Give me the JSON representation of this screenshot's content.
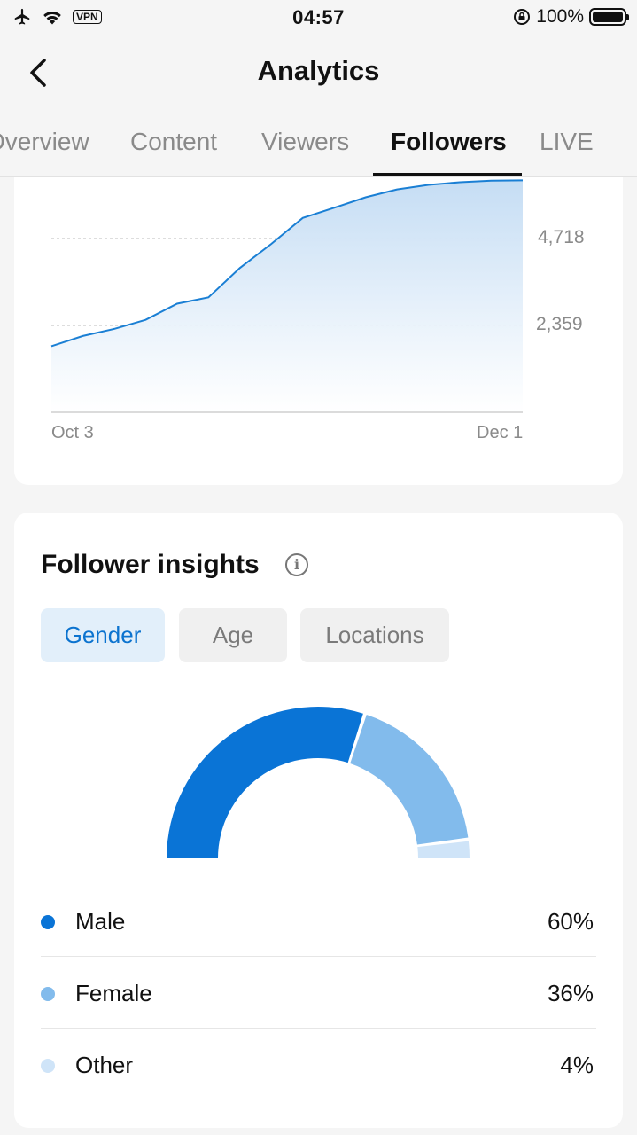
{
  "status_bar": {
    "time": "04:57",
    "vpn": "VPN",
    "battery": "100%"
  },
  "header": {
    "title": "Analytics"
  },
  "tabs": [
    {
      "label": "Overview",
      "active": false
    },
    {
      "label": "Content",
      "active": false
    },
    {
      "label": "Viewers",
      "active": false
    },
    {
      "label": "Followers",
      "active": true
    },
    {
      "label": "LIVE",
      "active": false
    }
  ],
  "chart_data": {
    "type": "area",
    "y_ticks": [
      "4,718",
      "2,359"
    ],
    "x_ticks": [
      "Oct 3",
      "Dec 1"
    ],
    "x": [
      "Oct 3",
      "Oct 7",
      "Oct 11",
      "Oct 15",
      "Oct 19",
      "Oct 23",
      "Oct 27",
      "Oct 31",
      "Nov 4",
      "Nov 8",
      "Nov 12",
      "Nov 16",
      "Nov 20",
      "Nov 24",
      "Nov 28",
      "Dec 1"
    ],
    "values": [
      1760,
      2030,
      2220,
      2460,
      2890,
      3060,
      3840,
      4480,
      5170,
      5440,
      5720,
      5930,
      6050,
      6120,
      6160,
      6170
    ],
    "ylim": [
      0,
      6250
    ],
    "color": "#1a7fd4"
  },
  "insights": {
    "title": "Follower insights",
    "tabs": [
      {
        "label": "Gender",
        "active": true
      },
      {
        "label": "Age",
        "active": false
      },
      {
        "label": "Locations",
        "active": false
      }
    ],
    "gender_chart": {
      "type": "pie",
      "style": "semi-donut",
      "categories": [
        "Male",
        "Female",
        "Other"
      ],
      "values": [
        60,
        36,
        4
      ],
      "colors": [
        "#0a74d6",
        "#82bbec",
        "#cfe4f8"
      ]
    },
    "legend": [
      {
        "label": "Male",
        "value": "60%",
        "color": "#0a74d6"
      },
      {
        "label": "Female",
        "value": "36%",
        "color": "#82bbec"
      },
      {
        "label": "Other",
        "value": "4%",
        "color": "#cfe4f8"
      }
    ]
  }
}
